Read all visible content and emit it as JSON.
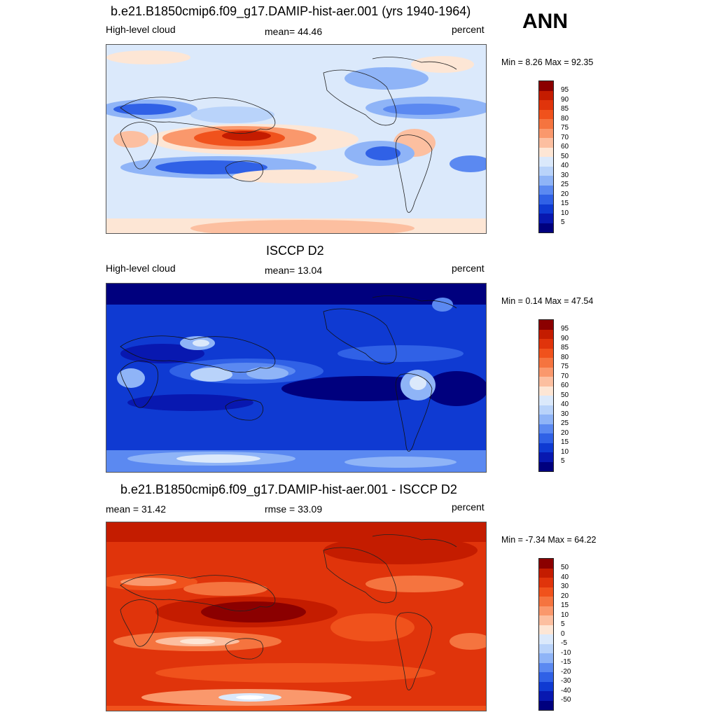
{
  "season": "ANN",
  "panels": [
    {
      "id": "model",
      "title": "b.e21.B1850cmip6.f09_g17.DAMIP-hist-aer.001 (yrs 1940-1964)",
      "left_label": "High-level cloud",
      "center_label": "mean=  44.46",
      "right_label": "percent",
      "minmax": "Min =   8.26 Max =  92.35",
      "colorbar_ticks": [
        "95",
        "90",
        "85",
        "80",
        "75",
        "70",
        "60",
        "50",
        "40",
        "30",
        "25",
        "20",
        "15",
        "10",
        "5"
      ]
    },
    {
      "id": "obs",
      "title": "ISCCP D2",
      "left_label": "High-level cloud",
      "center_label": "mean=  13.04",
      "right_label": "percent",
      "minmax": "Min =   0.14 Max =  47.54",
      "colorbar_ticks": [
        "95",
        "90",
        "85",
        "80",
        "75",
        "70",
        "60",
        "50",
        "40",
        "30",
        "25",
        "20",
        "15",
        "10",
        "5"
      ]
    },
    {
      "id": "diff",
      "title": "b.e21.B1850cmip6.f09_g17.DAMIP-hist-aer.001 - ISCCP D2",
      "left_label": "mean =  31.42",
      "center_label": "rmse =  33.09",
      "right_label": "percent",
      "minmax": "Min =  -7.34 Max =  64.22",
      "colorbar_ticks": [
        "50",
        "40",
        "30",
        "20",
        "15",
        "10",
        "5",
        "0",
        "-5",
        "-10",
        "-15",
        "-20",
        "-30",
        "-40",
        "-50"
      ]
    }
  ],
  "colorbar_colors": [
    "#8b0000",
    "#c41c00",
    "#e0340b",
    "#f0521c",
    "#f5743f",
    "#fa986c",
    "#fcbfa0",
    "#fde6d5",
    "#dbe9fb",
    "#b9d3fa",
    "#8fb4f7",
    "#5b89f1",
    "#3061e6",
    "#0f3ad2",
    "#0818b0",
    "#00007e"
  ]
}
